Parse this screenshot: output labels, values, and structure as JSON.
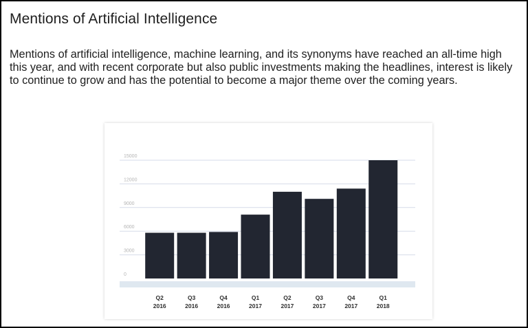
{
  "page": {
    "title": "Mentions of Artificial Intelligence",
    "paragraph": "Mentions of artificial intelligence, machine learning, and its synonyms have reached an all-time high this year, and with recent corporate  but also public investments making the headlines, interest is likely to continue to grow and has the potential to become a major theme over the coming years."
  },
  "chart_data": {
    "type": "bar",
    "categories": [
      {
        "quarter": "Q2",
        "year": "2016"
      },
      {
        "quarter": "Q3",
        "year": "2016"
      },
      {
        "quarter": "Q4",
        "year": "2016"
      },
      {
        "quarter": "Q1",
        "year": "2017"
      },
      {
        "quarter": "Q2",
        "year": "2017"
      },
      {
        "quarter": "Q3",
        "year": "2017"
      },
      {
        "quarter": "Q4",
        "year": "2017"
      },
      {
        "quarter": "Q1",
        "year": "2018"
      }
    ],
    "values": [
      5800,
      5800,
      5900,
      8100,
      11000,
      10100,
      11400,
      15000
    ],
    "yticks": [
      0,
      3000,
      6000,
      9000,
      12000,
      15000
    ],
    "ylim": [
      0,
      15000
    ],
    "grid": true,
    "bar_color": "#222631",
    "grid_color": "#d6dbe8",
    "axis_band_color": "#dfe8f0"
  }
}
